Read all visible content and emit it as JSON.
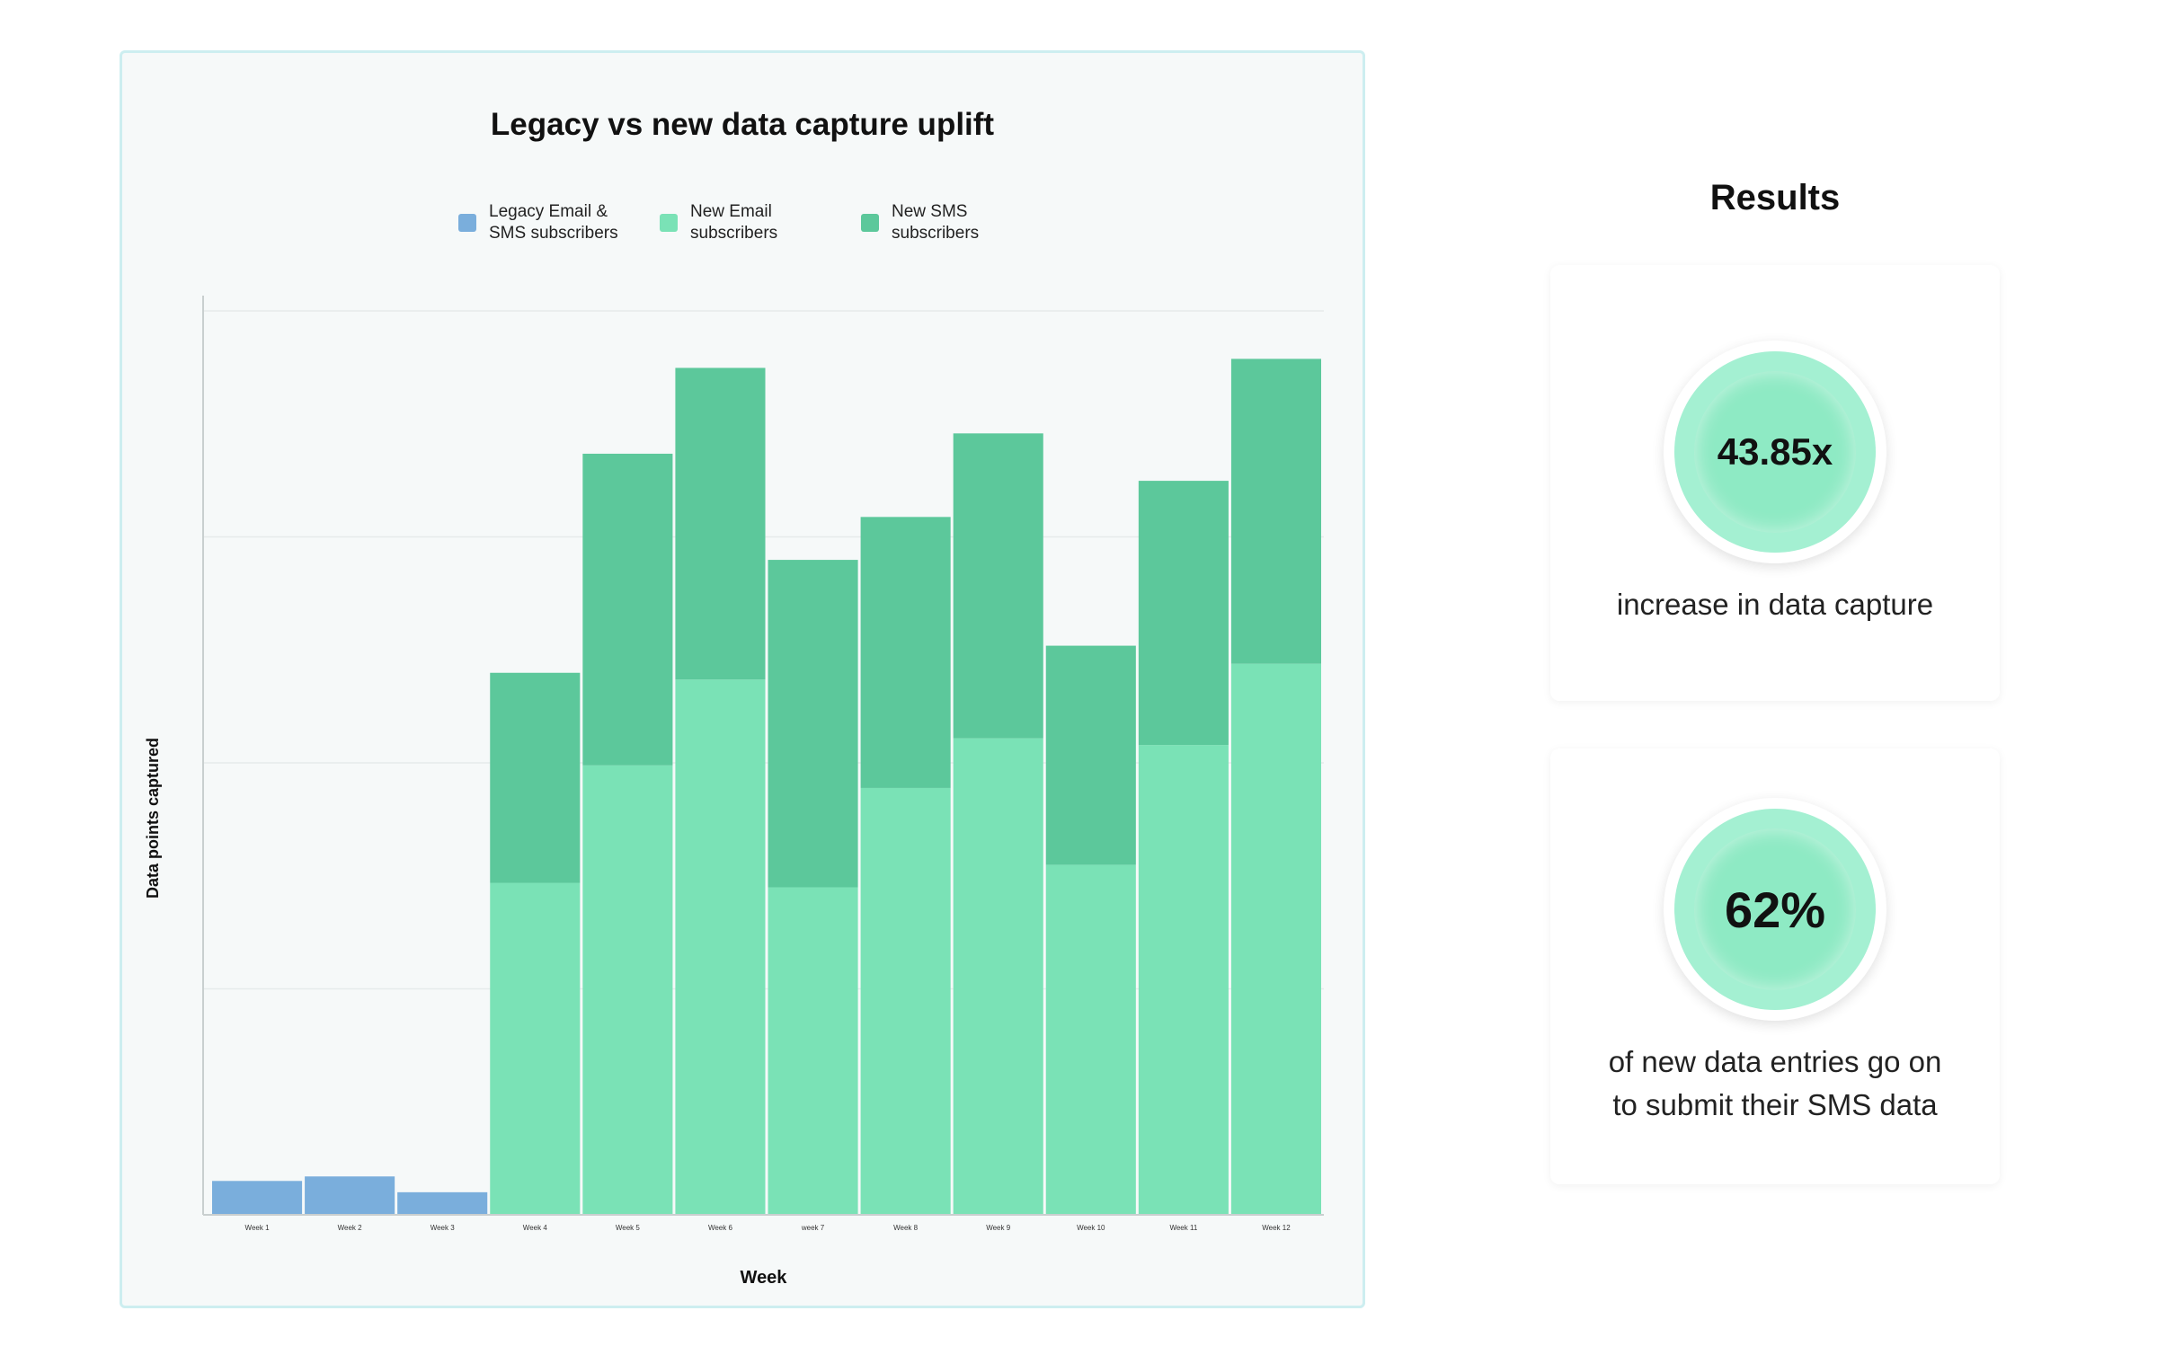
{
  "chart_data": {
    "type": "bar",
    "stacked": true,
    "title": "Legacy vs new data capture uplift",
    "xlabel": "Week",
    "ylabel": "Data points captured",
    "categories": [
      "Week 1",
      "Week 2",
      "Week 3",
      "Week 4",
      "Week 5",
      "Week 6",
      "week 7",
      "Week 8",
      "Week 9",
      "Week 10",
      "Week 11",
      "Week 12"
    ],
    "series": [
      {
        "name": "Legacy Email & SMS subscribers",
        "color": "#7aaedc",
        "values": [
          0.15,
          0.17,
          0.1,
          0,
          0,
          0,
          0,
          0,
          0,
          0,
          0,
          0
        ]
      },
      {
        "name": "New Email subscribers",
        "color": "#7ae2b6",
        "values": [
          0,
          0,
          0,
          1.47,
          1.99,
          2.37,
          1.45,
          1.89,
          2.11,
          1.55,
          2.08,
          2.44
        ]
      },
      {
        "name": "New SMS subscribers",
        "color": "#5cc89b",
        "values": [
          0,
          0,
          0,
          0.93,
          1.38,
          1.38,
          1.45,
          1.2,
          1.35,
          0.97,
          1.17,
          1.35
        ]
      }
    ],
    "ylim": [
      0,
      4.07
    ],
    "grid": true,
    "legend": "top-center"
  },
  "results": {
    "title": "Results",
    "stats": [
      {
        "value": "43.85x",
        "caption": "increase in data capture"
      },
      {
        "value": "62%",
        "caption": "of new data entries go on\nto submit their SMS data"
      }
    ]
  }
}
